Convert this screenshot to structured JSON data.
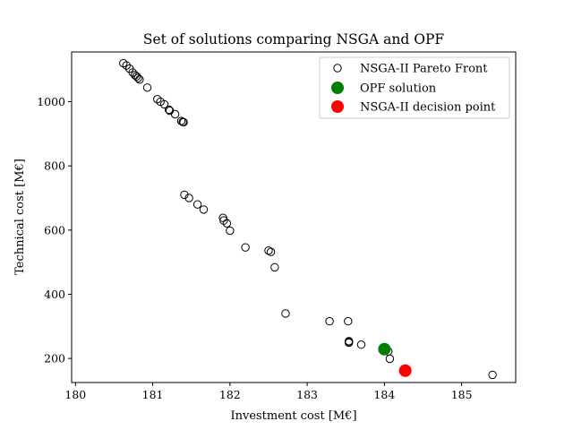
{
  "chart_data": {
    "type": "scatter",
    "title": "Set of solutions comparing NSGA and OPF",
    "xlabel": "Investment cost [M€]",
    "ylabel": "Technical cost [M€]",
    "xlim": [
      179.95,
      185.7
    ],
    "ylim": [
      125,
      1155
    ],
    "xticks": [
      "180",
      "181",
      "182",
      "183",
      "184",
      "185"
    ],
    "yticks": [
      "200",
      "400",
      "600",
      "800",
      "1000"
    ],
    "grid": false,
    "legend_position": "top-right",
    "series": [
      {
        "name": "NSGA-II Pareto Front",
        "marker": "hollow-circle",
        "color": "#000000",
        "points": [
          [
            180.62,
            1120
          ],
          [
            180.66,
            1113
          ],
          [
            180.7,
            1103
          ],
          [
            180.74,
            1091
          ],
          [
            180.77,
            1083
          ],
          [
            180.79,
            1079
          ],
          [
            180.81,
            1074
          ],
          [
            180.83,
            1069
          ],
          [
            180.93,
            1044
          ],
          [
            181.06,
            1008
          ],
          [
            181.1,
            1000
          ],
          [
            181.15,
            992
          ],
          [
            181.21,
            975
          ],
          [
            181.22,
            972
          ],
          [
            181.29,
            961
          ],
          [
            181.37,
            940
          ],
          [
            181.39,
            937
          ],
          [
            181.4,
            936
          ],
          [
            181.41,
            710
          ],
          [
            181.47,
            700
          ],
          [
            181.58,
            680
          ],
          [
            181.66,
            664
          ],
          [
            181.91,
            638
          ],
          [
            181.92,
            630
          ],
          [
            181.96,
            621
          ],
          [
            182.0,
            598
          ],
          [
            182.2,
            546
          ],
          [
            182.5,
            536
          ],
          [
            182.53,
            532
          ],
          [
            182.58,
            484
          ],
          [
            182.72,
            340
          ],
          [
            183.29,
            316
          ],
          [
            183.53,
            316
          ],
          [
            183.54,
            254
          ],
          [
            183.54,
            251
          ],
          [
            183.54,
            249
          ],
          [
            183.7,
            243
          ],
          [
            184.05,
            222
          ],
          [
            184.07,
            199
          ],
          [
            185.4,
            149
          ]
        ]
      },
      {
        "name": "OPF solution",
        "marker": "filled-circle",
        "color": "#008000",
        "points": [
          [
            184.0,
            229
          ]
        ]
      },
      {
        "name": "NSGA-II decision point",
        "marker": "filled-circle",
        "color": "#ff0000",
        "points": [
          [
            184.27,
            162
          ]
        ]
      }
    ]
  }
}
